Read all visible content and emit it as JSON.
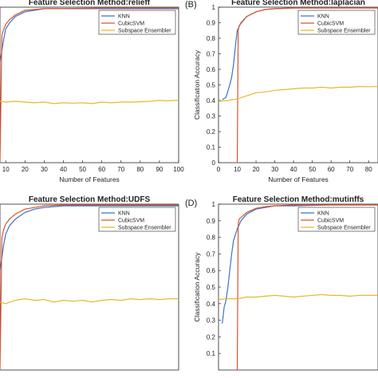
{
  "chart_data": [
    {
      "type": "line",
      "panel_letter": "",
      "title": "Feature Selection Method:relieff",
      "xlabel": "Number of Features",
      "ylabel": "",
      "xlim": [
        7,
        100
      ],
      "ylim": [
        0,
        1
      ],
      "xticks": [
        "10",
        "20",
        "30",
        "40",
        "50",
        "60",
        "70",
        "80",
        "90",
        "100"
      ],
      "yticks": [],
      "legend_position": "top-right",
      "series": [
        {
          "name": "KNN",
          "color": "#3a73c8",
          "points": [
            [
              7,
              0.65
            ],
            [
              8,
              0.72
            ],
            [
              9,
              0.8
            ],
            [
              10,
              0.86
            ],
            [
              12,
              0.9
            ],
            [
              15,
              0.94
            ],
            [
              20,
              0.97
            ],
            [
              25,
              0.98
            ],
            [
              30,
              0.99
            ],
            [
              40,
              0.99
            ],
            [
              60,
              0.99
            ],
            [
              80,
              0.99
            ],
            [
              100,
              0.99
            ]
          ]
        },
        {
          "name": "CubicSVM",
          "color": "#d9552b",
          "points": [
            [
              7,
              0.0
            ],
            [
              8,
              0.82
            ],
            [
              9,
              0.86
            ],
            [
              10,
              0.89
            ],
            [
              12,
              0.92
            ],
            [
              15,
              0.95
            ],
            [
              20,
              0.98
            ],
            [
              25,
              0.985
            ],
            [
              30,
              0.99
            ],
            [
              40,
              0.99
            ],
            [
              60,
              0.995
            ],
            [
              80,
              0.995
            ],
            [
              100,
              0.995
            ]
          ]
        },
        {
          "name": "Subspace Ensembler",
          "color": "#e8b830",
          "points": [
            [
              7,
              0.395
            ],
            [
              10,
              0.39
            ],
            [
              15,
              0.395
            ],
            [
              20,
              0.39
            ],
            [
              25,
              0.385
            ],
            [
              30,
              0.39
            ],
            [
              35,
              0.38
            ],
            [
              40,
              0.385
            ],
            [
              45,
              0.383
            ],
            [
              50,
              0.385
            ],
            [
              55,
              0.38
            ],
            [
              60,
              0.39
            ],
            [
              65,
              0.385
            ],
            [
              70,
              0.39
            ],
            [
              75,
              0.39
            ],
            [
              80,
              0.392
            ],
            [
              85,
              0.395
            ],
            [
              90,
              0.4
            ],
            [
              95,
              0.398
            ],
            [
              100,
              0.402
            ]
          ]
        }
      ]
    },
    {
      "type": "line",
      "panel_letter": "(B)",
      "title": "Feature Selection Method:laplacian",
      "xlabel": "Number of Features",
      "ylabel": "Classification Accuracy",
      "xlim": [
        0,
        85
      ],
      "ylim": [
        0,
        1
      ],
      "xticks": [
        "0",
        "10",
        "20",
        "30",
        "40",
        "50",
        "60",
        "70",
        "80"
      ],
      "yticks": [
        "0",
        "0.1",
        "0.2",
        "0.3",
        "0.4",
        "0.5",
        "0.6",
        "0.7",
        "0.8",
        "0.9",
        "1"
      ],
      "legend_position": "top-right",
      "series": [
        {
          "name": "KNN",
          "color": "#3a73c8",
          "points": [
            [
              2,
              0.405
            ],
            [
              4,
              0.42
            ],
            [
              6,
              0.5
            ],
            [
              7,
              0.55
            ],
            [
              8,
              0.63
            ],
            [
              9,
              0.75
            ],
            [
              10,
              0.85
            ],
            [
              12,
              0.9
            ],
            [
              15,
              0.94
            ],
            [
              20,
              0.97
            ],
            [
              25,
              0.985
            ],
            [
              30,
              0.99
            ],
            [
              40,
              0.995
            ],
            [
              60,
              0.995
            ],
            [
              85,
              0.995
            ]
          ]
        },
        {
          "name": "CubicSVM",
          "color": "#d9552b",
          "points": [
            [
              10,
              0.0
            ],
            [
              10.5,
              0.85
            ],
            [
              11,
              0.88
            ],
            [
              13,
              0.91
            ],
            [
              15,
              0.94
            ],
            [
              20,
              0.97
            ],
            [
              25,
              0.985
            ],
            [
              30,
              0.99
            ],
            [
              40,
              0.995
            ],
            [
              60,
              0.995
            ],
            [
              85,
              0.995
            ]
          ]
        },
        {
          "name": "Subspace Ensembler",
          "color": "#e8b830",
          "points": [
            [
              0,
              0.395
            ],
            [
              5,
              0.4
            ],
            [
              10,
              0.41
            ],
            [
              15,
              0.43
            ],
            [
              20,
              0.45
            ],
            [
              25,
              0.455
            ],
            [
              30,
              0.465
            ],
            [
              35,
              0.47
            ],
            [
              40,
              0.475
            ],
            [
              45,
              0.48
            ],
            [
              50,
              0.48
            ],
            [
              55,
              0.485
            ],
            [
              60,
              0.48
            ],
            [
              65,
              0.485
            ],
            [
              70,
              0.485
            ],
            [
              75,
              0.49
            ],
            [
              80,
              0.488
            ],
            [
              85,
              0.49
            ]
          ]
        }
      ]
    },
    {
      "type": "line",
      "panel_letter": "",
      "title": "Feature Selection Method:UDFS",
      "xlabel": "",
      "ylabel": "",
      "xlim": [
        7,
        100
      ],
      "ylim": [
        0,
        1
      ],
      "xticks": [],
      "yticks": [],
      "legend_position": "top-right",
      "series": [
        {
          "name": "KNN",
          "color": "#3a73c8",
          "points": [
            [
              7,
              0.6
            ],
            [
              8,
              0.68
            ],
            [
              9,
              0.76
            ],
            [
              10,
              0.82
            ],
            [
              12,
              0.87
            ],
            [
              15,
              0.91
            ],
            [
              20,
              0.95
            ],
            [
              25,
              0.97
            ],
            [
              30,
              0.98
            ],
            [
              40,
              0.99
            ],
            [
              60,
              0.99
            ],
            [
              80,
              0.99
            ],
            [
              100,
              0.99
            ]
          ]
        },
        {
          "name": "CubicSVM",
          "color": "#d9552b",
          "points": [
            [
              7,
              0.0
            ],
            [
              8,
              0.8
            ],
            [
              9,
              0.85
            ],
            [
              10,
              0.88
            ],
            [
              12,
              0.91
            ],
            [
              15,
              0.94
            ],
            [
              20,
              0.97
            ],
            [
              25,
              0.98
            ],
            [
              30,
              0.99
            ],
            [
              40,
              0.995
            ],
            [
              60,
              0.995
            ],
            [
              80,
              0.995
            ],
            [
              100,
              0.995
            ]
          ]
        },
        {
          "name": "Subspace Ensembler",
          "color": "#e8b830",
          "points": [
            [
              7,
              0.41
            ],
            [
              10,
              0.4
            ],
            [
              15,
              0.42
            ],
            [
              20,
              0.43
            ],
            [
              25,
              0.42
            ],
            [
              30,
              0.425
            ],
            [
              35,
              0.41
            ],
            [
              40,
              0.42
            ],
            [
              45,
              0.415
            ],
            [
              50,
              0.42
            ],
            [
              55,
              0.41
            ],
            [
              60,
              0.42
            ],
            [
              65,
              0.425
            ],
            [
              70,
              0.42
            ],
            [
              75,
              0.43
            ],
            [
              80,
              0.425
            ],
            [
              85,
              0.43
            ],
            [
              90,
              0.425
            ],
            [
              95,
              0.43
            ],
            [
              100,
              0.43
            ]
          ]
        }
      ]
    },
    {
      "type": "line",
      "panel_letter": "(D)",
      "title": "Feature Selection Method:mutinffs",
      "xlabel": "",
      "ylabel": "Classification Accuracy",
      "xlim": [
        0,
        85
      ],
      "ylim": [
        0,
        1
      ],
      "xticks": [],
      "yticks": [
        "0.1",
        "0.2",
        "0.3",
        "0.4",
        "0.5",
        "0.6",
        "0.7",
        "0.8",
        "0.9",
        "1"
      ],
      "legend_position": "top-right",
      "series": [
        {
          "name": "KNN",
          "color": "#3a73c8",
          "points": [
            [
              2,
              0.28
            ],
            [
              3,
              0.38
            ],
            [
              4,
              0.42
            ],
            [
              5,
              0.5
            ],
            [
              6,
              0.6
            ],
            [
              7,
              0.7
            ],
            [
              8,
              0.78
            ],
            [
              10,
              0.85
            ],
            [
              12,
              0.9
            ],
            [
              15,
              0.94
            ],
            [
              20,
              0.97
            ],
            [
              25,
              0.98
            ],
            [
              30,
              0.99
            ],
            [
              40,
              0.99
            ],
            [
              60,
              0.995
            ],
            [
              85,
              0.995
            ]
          ]
        },
        {
          "name": "CubicSVM",
          "color": "#d9552b",
          "points": [
            [
              10,
              0.0
            ],
            [
              10.5,
              0.88
            ],
            [
              11,
              0.91
            ],
            [
              13,
              0.93
            ],
            [
              15,
              0.95
            ],
            [
              20,
              0.975
            ],
            [
              25,
              0.985
            ],
            [
              30,
              0.99
            ],
            [
              40,
              0.995
            ],
            [
              60,
              0.995
            ],
            [
              85,
              0.995
            ]
          ]
        },
        {
          "name": "Subspace Ensembler",
          "color": "#e8b830",
          "points": [
            [
              0,
              0.425
            ],
            [
              5,
              0.43
            ],
            [
              10,
              0.43
            ],
            [
              15,
              0.44
            ],
            [
              20,
              0.44
            ],
            [
              25,
              0.445
            ],
            [
              30,
              0.45
            ],
            [
              35,
              0.445
            ],
            [
              40,
              0.44
            ],
            [
              45,
              0.445
            ],
            [
              50,
              0.45
            ],
            [
              55,
              0.455
            ],
            [
              60,
              0.45
            ],
            [
              65,
              0.45
            ],
            [
              70,
              0.445
            ],
            [
              75,
              0.45
            ],
            [
              80,
              0.45
            ],
            [
              85,
              0.45
            ]
          ]
        }
      ]
    }
  ]
}
